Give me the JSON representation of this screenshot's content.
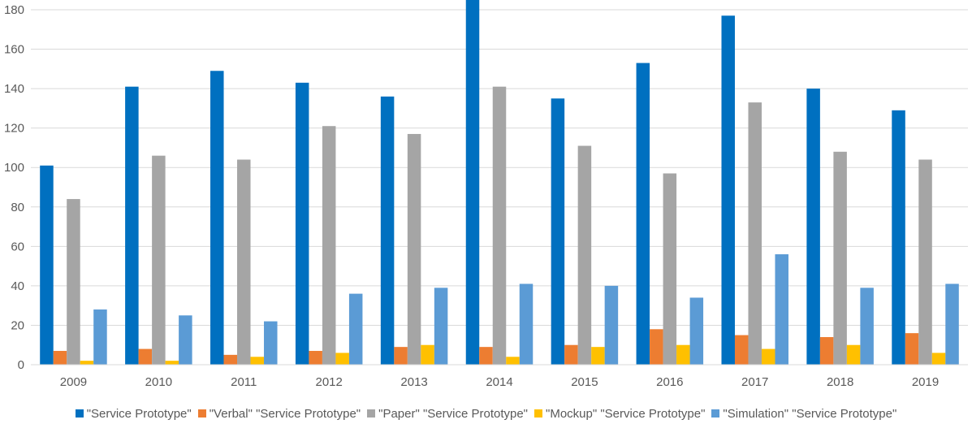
{
  "chart_data": {
    "type": "bar",
    "categories": [
      "2009",
      "2010",
      "2011",
      "2012",
      "2013",
      "2014",
      "2015",
      "2016",
      "2017",
      "2018",
      "2019"
    ],
    "series": [
      {
        "name": "\"Service Prototype\"",
        "color": "#0070C0",
        "values": [
          101,
          141,
          149,
          143,
          136,
          186,
          135,
          153,
          177,
          140,
          129
        ]
      },
      {
        "name": "\"Verbal\" \"Service Prototype\"",
        "color": "#ED7D31",
        "values": [
          7,
          8,
          5,
          7,
          9,
          9,
          10,
          18,
          15,
          14,
          16
        ]
      },
      {
        "name": "\"Paper\" \"Service Prototype\"",
        "color": "#A5A5A5",
        "values": [
          84,
          106,
          104,
          121,
          117,
          141,
          111,
          97,
          133,
          108,
          104
        ]
      },
      {
        "name": "\"Mockup\" \"Service Prototype\"",
        "color": "#FFC000",
        "values": [
          2,
          2,
          4,
          6,
          10,
          4,
          9,
          10,
          8,
          10,
          6
        ]
      },
      {
        "name": "\"Simulation\" \"Service Prototype\"",
        "color": "#5B9BD5",
        "values": [
          28,
          25,
          22,
          36,
          39,
          41,
          40,
          34,
          56,
          39,
          41
        ]
      }
    ],
    "y_ticks": [
      "0",
      "20",
      "40",
      "60",
      "80",
      "100",
      "120",
      "140",
      "160",
      "180"
    ],
    "ylim": [
      0,
      180
    ],
    "grid": true,
    "legend_position": "bottom",
    "title": "",
    "xlabel": "",
    "ylabel": ""
  }
}
